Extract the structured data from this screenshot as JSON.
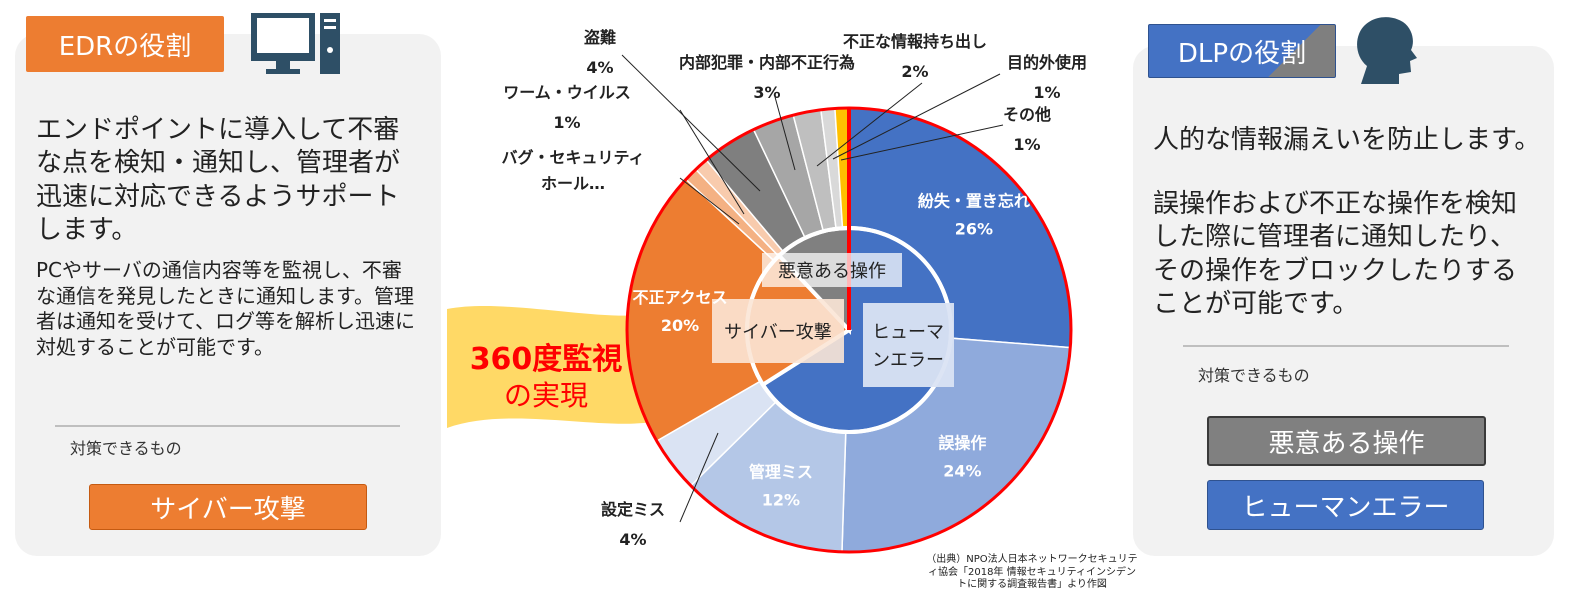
{
  "edr": {
    "title": "EDRの役割",
    "main_text": "エンドポイントに導入して不審な点を検知・通知し、管理者が迅速に対応できるようサポートします。",
    "sub_text": "PCやサーバの通信内容等を監視し、不審な通信を発見したときに通知します。管理者は通知を受けて、ログ等を解析し迅速に対処することが可能です。",
    "countermeasure_label": "対策できるもの",
    "countermeasure_button": "サイバー攻撃",
    "icon": "desktop-computer-icon",
    "accent": "#ed7d31"
  },
  "dlp": {
    "title": "DLPの役割",
    "main_text": "人的な情報漏えいを防止します。",
    "sub_text": "誤操作および不正な操作を検知した際に管理者に通知したり、その操作をブロックしたりすることが可能です。",
    "countermeasure_label": "対策できるもの",
    "button_malicious": "悪意ある操作",
    "button_human": "ヒューマンエラー",
    "icon": "person-head-icon",
    "accent": "#4472c4"
  },
  "banner": {
    "line1": "360度監視",
    "line2": "の実現"
  },
  "source_note": "（出典）NPO法人日本ネットワークセキュリティ協会「2018年 情報セキュリティインシデントに関する調査報告書」より作図",
  "chart_data": {
    "type": "pie",
    "title": "",
    "outer": [
      {
        "label": "紛失・置き忘れ",
        "value": 26,
        "display": "26%",
        "color": "#4472c4"
      },
      {
        "label": "誤操作",
        "value": 24,
        "display": "24%",
        "color": "#8faadc"
      },
      {
        "label": "管理ミス",
        "value": 12,
        "display": "12%",
        "color": "#b4c7e7"
      },
      {
        "label": "設定ミス",
        "value": 4,
        "display": "4%",
        "color": "#dae3f3"
      },
      {
        "label": "不正アクセス",
        "value": 20,
        "display": "20%",
        "color": "#ed7d31"
      },
      {
        "label": "バグ・セキュリティホール…",
        "value": 1,
        "display": "",
        "color": "#f4b183"
      },
      {
        "label": "ワーム・ウイルス",
        "value": 1,
        "display": "1%",
        "color": "#f8cbad"
      },
      {
        "label": "盗難",
        "value": 4,
        "display": "4%",
        "color": "#7f7f7f"
      },
      {
        "label": "内部犯罪・内部不正行為",
        "value": 3,
        "display": "3%",
        "color": "#a6a6a6"
      },
      {
        "label": "不正な情報持ち出し",
        "value": 2,
        "display": "2%",
        "color": "#bfbfbf"
      },
      {
        "label": "目的外使用",
        "value": 1,
        "display": "1%",
        "color": "#d9d9d9"
      },
      {
        "label": "その他",
        "value": 1,
        "display": "1%",
        "color": "#ffc000"
      }
    ],
    "inner": [
      {
        "label": "ヒューマンエラー",
        "value": 66,
        "color": "#4472c4"
      },
      {
        "label": "サイバー攻撃",
        "value": 22,
        "color": "#ed7d31"
      },
      {
        "label": "悪意ある操作",
        "value": 12,
        "color": "#808080"
      }
    ],
    "highlight_color": "#ff0000"
  }
}
